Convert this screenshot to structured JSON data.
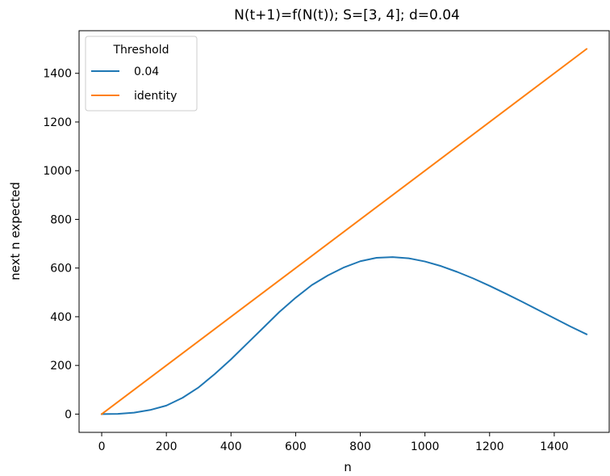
{
  "chart_data": {
    "type": "line",
    "title": "N(t+1)=f(N(t)); S=[3, 4]; d=0.04",
    "xlabel": "n",
    "ylabel": "next n expected",
    "xlim": [
      -70,
      1570
    ],
    "ylim": [
      -75,
      1575
    ],
    "xticks": [
      0,
      200,
      400,
      600,
      800,
      1000,
      1200,
      1400
    ],
    "yticks": [
      0,
      200,
      400,
      600,
      800,
      1000,
      1200,
      1400
    ],
    "grid": false,
    "legend": {
      "title": "Threshold",
      "position": "top-left"
    },
    "series": [
      {
        "name": "0.04",
        "color": "#1f77b4",
        "x": [
          0,
          50,
          100,
          150,
          200,
          250,
          300,
          350,
          400,
          450,
          500,
          550,
          600,
          650,
          700,
          750,
          800,
          850,
          900,
          950,
          1000,
          1050,
          1100,
          1150,
          1200,
          1250,
          1300,
          1350,
          1400,
          1450,
          1500
        ],
        "y": [
          0,
          1,
          6,
          17,
          35,
          67,
          110,
          165,
          225,
          290,
          355,
          420,
          478,
          530,
          570,
          603,
          628,
          642,
          645,
          640,
          627,
          608,
          584,
          557,
          527,
          495,
          462,
          428,
          394,
          360,
          328
        ]
      },
      {
        "name": "identity",
        "color": "#ff7f0e",
        "x": [
          0,
          1500
        ],
        "y": [
          0,
          1500
        ]
      }
    ]
  }
}
